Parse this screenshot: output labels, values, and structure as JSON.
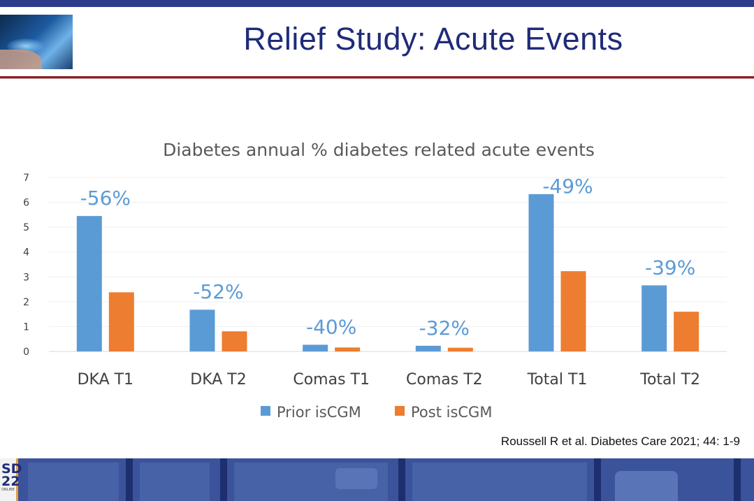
{
  "slide": {
    "title": "Relief Study: Acute Events",
    "citation": "Roussell R et al. Diabetes Care 2021; 44: 1-9"
  },
  "logo": {
    "line1": "SD",
    "line2": "22",
    "small": "ONLINE"
  },
  "colors": {
    "prior": "#5b9bd5",
    "post": "#ed7d31",
    "title": "#1f2b7a",
    "pct_label": "#5b9bd5"
  },
  "chart_data": {
    "type": "bar",
    "title": "Diabetes annual % diabetes related acute events",
    "categories": [
      "DKA T1",
      "DKA T2",
      "Comas T1",
      "Comas T2",
      "Total T1",
      "Total T2"
    ],
    "series": [
      {
        "name": "Prior isCGM",
        "values": [
          5.45,
          1.68,
          0.27,
          0.23,
          6.33,
          2.66
        ]
      },
      {
        "name": "Post isCGM",
        "values": [
          2.38,
          0.81,
          0.16,
          0.15,
          3.23,
          1.6
        ]
      }
    ],
    "change_labels": [
      "-56%",
      "-52%",
      "-40%",
      "-32%",
      "-49%",
      "-39%"
    ],
    "ylim": [
      0,
      7
    ],
    "yticks": [
      "0",
      "1",
      "2",
      "3",
      "4",
      "5",
      "6",
      "7"
    ],
    "grid": true,
    "legend": "bottom"
  }
}
